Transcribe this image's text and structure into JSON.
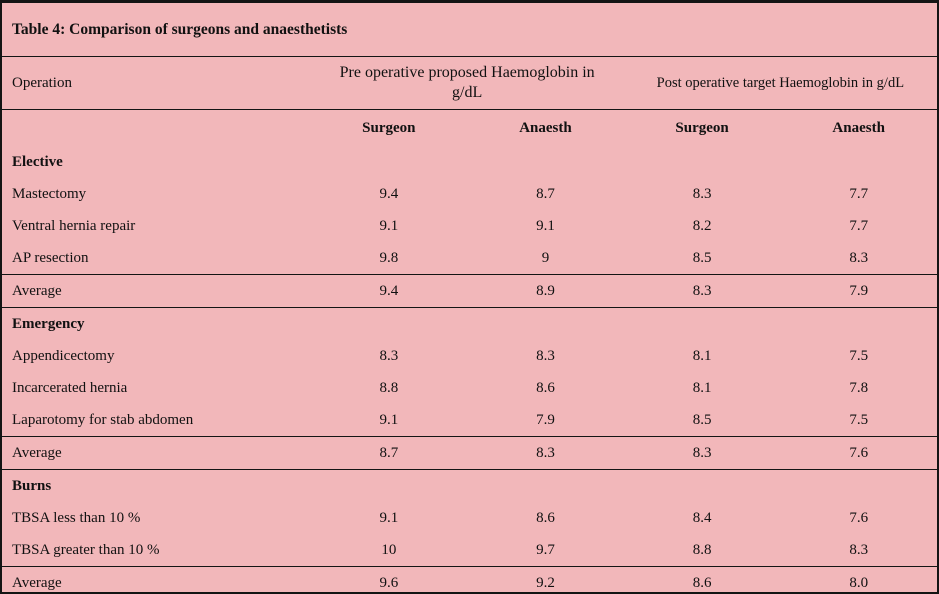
{
  "title": "Table 4: Comparison of surgeons and anaesthetists",
  "colors": {
    "background": "#f2b7ba",
    "border": "#141414",
    "text": "#111111"
  },
  "header": {
    "operation": "Operation",
    "preop_group": "Pre operative proposed Haemoglobin in g/dL",
    "postop_group": "Post operative target Haemoglobin in g/dL",
    "sub_columns": [
      "Surgeon",
      "Anaesth",
      "Surgeon",
      "Anaesth"
    ]
  },
  "rows": [
    {
      "type": "section",
      "label": "Elective"
    },
    {
      "type": "data",
      "label": "Mastectomy",
      "values": [
        "9.4",
        "8.7",
        "8.3",
        "7.7"
      ]
    },
    {
      "type": "data",
      "label": "Ventral hernia repair",
      "values": [
        "9.1",
        "9.1",
        "8.2",
        "7.7"
      ]
    },
    {
      "type": "data",
      "label": "AP resection",
      "values": [
        "9.8",
        "9",
        "8.5",
        "8.3"
      ]
    },
    {
      "type": "average",
      "label": "Average",
      "values": [
        "9.4",
        "8.9",
        "8.3",
        "7.9"
      ]
    },
    {
      "type": "section",
      "label": "Emergency"
    },
    {
      "type": "data",
      "label": "Appendicectomy",
      "values": [
        "8.3",
        "8.3",
        "8.1",
        "7.5"
      ]
    },
    {
      "type": "data",
      "label": "Incarcerated hernia",
      "values": [
        "8.8",
        "8.6",
        "8.1",
        "7.8"
      ]
    },
    {
      "type": "data",
      "label": "Laparotomy for stab abdomen",
      "values": [
        "9.1",
        "7.9",
        "8.5",
        "7.5"
      ]
    },
    {
      "type": "average",
      "label": "Average",
      "values": [
        "8.7",
        "8.3",
        "8.3",
        "7.6"
      ]
    },
    {
      "type": "section",
      "label": "Burns"
    },
    {
      "type": "data",
      "label": "TBSA less than 10 %",
      "values": [
        "9.1",
        "8.6",
        "8.4",
        "7.6"
      ]
    },
    {
      "type": "data",
      "label": "TBSA greater than 10 %",
      "values": [
        "10",
        "9.7",
        "8.8",
        "8.3"
      ]
    },
    {
      "type": "average",
      "label": "Average",
      "values": [
        "9.6",
        "9.2",
        "8.6",
        "8.0"
      ]
    }
  ]
}
